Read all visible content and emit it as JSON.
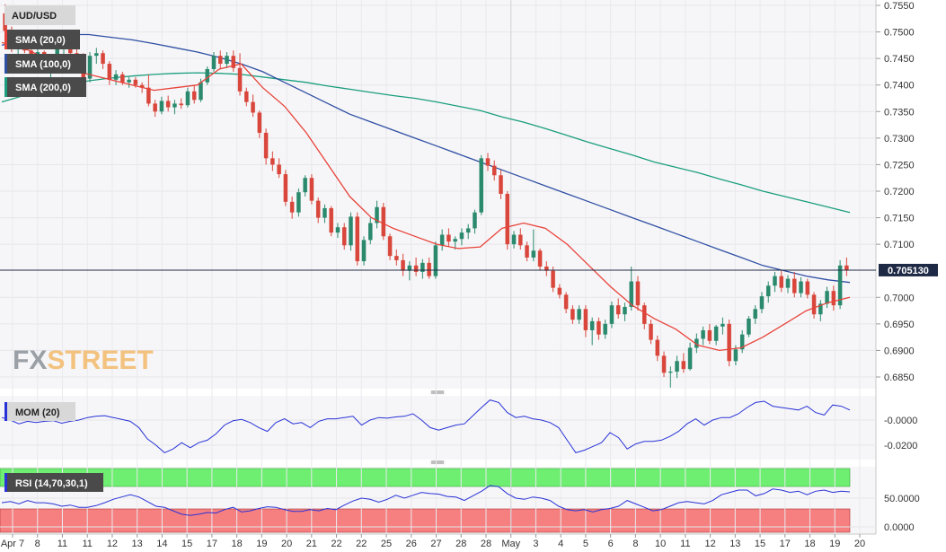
{
  "chart_data": [
    {
      "type": "candlestick",
      "title": "AUD/USD",
      "x_ticks": [
        "Apr 7",
        "8",
        "11",
        "11",
        "12",
        "13",
        "14",
        "15",
        "17",
        "18",
        "19",
        "20",
        "21",
        "22",
        "22",
        "25",
        "26",
        "27",
        "28",
        "28",
        "May",
        "3",
        "4",
        "5",
        "6",
        "8",
        "10",
        "11",
        "12",
        "13",
        "15",
        "17",
        "18",
        "19",
        "20"
      ],
      "y_ticks": [
        "0.7550",
        "0.7500",
        "0.7450",
        "0.7400",
        "0.7350",
        "0.7300",
        "0.7250",
        "0.7200",
        "0.7150",
        "0.7100",
        "0.7000",
        "0.6950",
        "0.6900",
        "0.6850"
      ],
      "ylim": [
        0.683,
        0.756
      ],
      "last_price": 0.70513,
      "last_price_label": "0.705130",
      "indicators": [
        {
          "name": "SMA (20,0)",
          "color": "#e8433a"
        },
        {
          "name": "SMA (100,0)",
          "color": "#2f4fa3"
        },
        {
          "name": "SMA (200,0)",
          "color": "#1b9e7e"
        }
      ],
      "up_color": "#2b8a6e",
      "down_color": "#d9463b",
      "ohlc": [
        [
          0.7535,
          0.7552,
          0.749,
          0.7502
        ],
        [
          0.7502,
          0.751,
          0.7462,
          0.747
        ],
        [
          0.747,
          0.749,
          0.7455,
          0.7485
        ],
        [
          0.7485,
          0.7492,
          0.746,
          0.7465
        ],
        [
          0.7465,
          0.7478,
          0.744,
          0.745
        ],
        [
          0.745,
          0.747,
          0.744,
          0.7462
        ],
        [
          0.7462,
          0.7465,
          0.7425,
          0.743
        ],
        [
          0.743,
          0.7448,
          0.7412,
          0.744
        ],
        [
          0.744,
          0.7475,
          0.7432,
          0.747
        ],
        [
          0.747,
          0.7498,
          0.7455,
          0.749
        ],
        [
          0.749,
          0.7495,
          0.7455,
          0.746
        ],
        [
          0.746,
          0.747,
          0.7435,
          0.7445
        ],
        [
          0.7445,
          0.746,
          0.7395,
          0.7412
        ],
        [
          0.7412,
          0.7462,
          0.7405,
          0.7455
        ],
        [
          0.7455,
          0.747,
          0.744,
          0.746
        ],
        [
          0.746,
          0.7465,
          0.743,
          0.744
        ],
        [
          0.744,
          0.7445,
          0.74,
          0.741
        ],
        [
          0.741,
          0.7428,
          0.74,
          0.742
        ],
        [
          0.742,
          0.7425,
          0.74,
          0.7405
        ],
        [
          0.7405,
          0.7415,
          0.7395,
          0.741
        ],
        [
          0.741,
          0.7415,
          0.7395,
          0.74
        ],
        [
          0.74,
          0.7405,
          0.7385,
          0.7395
        ],
        [
          0.7395,
          0.742,
          0.736,
          0.7365
        ],
        [
          0.7365,
          0.7372,
          0.734,
          0.735
        ],
        [
          0.735,
          0.7378,
          0.7345,
          0.737
        ],
        [
          0.737,
          0.738,
          0.735,
          0.7358
        ],
        [
          0.7358,
          0.7372,
          0.7345,
          0.7365
        ],
        [
          0.7365,
          0.7375,
          0.7355,
          0.7362
        ],
        [
          0.7362,
          0.7395,
          0.7358,
          0.7388
        ],
        [
          0.7388,
          0.74,
          0.7365,
          0.7372
        ],
        [
          0.7372,
          0.7412,
          0.7368,
          0.7405
        ],
        [
          0.7405,
          0.7435,
          0.74,
          0.743
        ],
        [
          0.743,
          0.7462,
          0.7425,
          0.7455
        ],
        [
          0.7455,
          0.7465,
          0.743,
          0.744
        ],
        [
          0.744,
          0.7462,
          0.7432,
          0.7455
        ],
        [
          0.7455,
          0.7465,
          0.7425,
          0.7432
        ],
        [
          0.7432,
          0.746,
          0.738,
          0.7388
        ],
        [
          0.7388,
          0.7395,
          0.736,
          0.7368
        ],
        [
          0.7368,
          0.7382,
          0.734,
          0.7348
        ],
        [
          0.7348,
          0.7352,
          0.73,
          0.731
        ],
        [
          0.731,
          0.7318,
          0.725,
          0.7262
        ],
        [
          0.7262,
          0.7275,
          0.7238,
          0.725
        ],
        [
          0.725,
          0.7262,
          0.7225,
          0.7232
        ],
        [
          0.7232,
          0.724,
          0.7172,
          0.718
        ],
        [
          0.718,
          0.719,
          0.7148,
          0.716
        ],
        [
          0.716,
          0.7205,
          0.7152,
          0.7198
        ],
        [
          0.7198,
          0.723,
          0.719,
          0.7225
        ],
        [
          0.7225,
          0.7232,
          0.7175,
          0.7182
        ],
        [
          0.7182,
          0.7188,
          0.714,
          0.715
        ],
        [
          0.715,
          0.7175,
          0.714,
          0.7168
        ],
        [
          0.7168,
          0.7172,
          0.7115,
          0.7122
        ],
        [
          0.7122,
          0.714,
          0.7112,
          0.7132
        ],
        [
          0.7132,
          0.714,
          0.709,
          0.7098
        ],
        [
          0.7098,
          0.716,
          0.7088,
          0.7152
        ],
        [
          0.7152,
          0.716,
          0.706,
          0.7068
        ],
        [
          0.7068,
          0.7115,
          0.706,
          0.7108
        ],
        [
          0.7108,
          0.715,
          0.71,
          0.714
        ],
        [
          0.714,
          0.7182,
          0.713,
          0.717
        ],
        [
          0.717,
          0.7178,
          0.7108,
          0.7115
        ],
        [
          0.7115,
          0.712,
          0.707,
          0.7078
        ],
        [
          0.7078,
          0.709,
          0.706,
          0.707
        ],
        [
          0.707,
          0.7082,
          0.704,
          0.705
        ],
        [
          0.705,
          0.7068,
          0.7032,
          0.706
        ],
        [
          0.706,
          0.7075,
          0.704,
          0.7048
        ],
        [
          0.7048,
          0.7072,
          0.7035,
          0.7065
        ],
        [
          0.7065,
          0.7075,
          0.7035,
          0.704
        ],
        [
          0.704,
          0.7105,
          0.7035,
          0.7098
        ],
        [
          0.7098,
          0.7128,
          0.7088,
          0.7118
        ],
        [
          0.7118,
          0.713,
          0.7095,
          0.7105
        ],
        [
          0.7105,
          0.7115,
          0.709,
          0.711
        ],
        [
          0.711,
          0.713,
          0.7098,
          0.7122
        ],
        [
          0.7122,
          0.7138,
          0.711,
          0.713
        ],
        [
          0.713,
          0.7165,
          0.712,
          0.716
        ],
        [
          0.716,
          0.7268,
          0.7155,
          0.7262
        ],
        [
          0.7262,
          0.7272,
          0.7238,
          0.7248
        ],
        [
          0.7248,
          0.7258,
          0.722,
          0.723
        ],
        [
          0.723,
          0.724,
          0.7185,
          0.7195
        ],
        [
          0.7195,
          0.72,
          0.709,
          0.71
        ],
        [
          0.71,
          0.7125,
          0.7092,
          0.7118
        ],
        [
          0.7118,
          0.713,
          0.709,
          0.7098
        ],
        [
          0.7098,
          0.7105,
          0.7068,
          0.7075
        ],
        [
          0.7075,
          0.7128,
          0.7068,
          0.7088
        ],
        [
          0.7088,
          0.7092,
          0.705,
          0.7058
        ],
        [
          0.7058,
          0.7068,
          0.704,
          0.705
        ],
        [
          0.705,
          0.7058,
          0.701,
          0.7018
        ],
        [
          0.7018,
          0.7025,
          0.6998,
          0.7005
        ],
        [
          0.7005,
          0.701,
          0.697,
          0.6978
        ],
        [
          0.6978,
          0.6985,
          0.695,
          0.6958
        ],
        [
          0.6958,
          0.6985,
          0.695,
          0.6978
        ],
        [
          0.6978,
          0.6985,
          0.6925,
          0.6938
        ],
        [
          0.6938,
          0.6962,
          0.691,
          0.6955
        ],
        [
          0.6955,
          0.6962,
          0.692,
          0.693
        ],
        [
          0.693,
          0.6958,
          0.6922,
          0.695
        ],
        [
          0.695,
          0.6992,
          0.6942,
          0.6985
        ],
        [
          0.6985,
          0.6998,
          0.696,
          0.6968
        ],
        [
          0.6968,
          0.699,
          0.6955,
          0.6982
        ],
        [
          0.6982,
          0.7058,
          0.6975,
          0.703
        ],
        [
          0.703,
          0.704,
          0.6975,
          0.6985
        ],
        [
          0.6985,
          0.699,
          0.694,
          0.695
        ],
        [
          0.695,
          0.6958,
          0.6912,
          0.692
        ],
        [
          0.692,
          0.6928,
          0.688,
          0.689
        ],
        [
          0.689,
          0.6898,
          0.685,
          0.6858
        ],
        [
          0.6858,
          0.687,
          0.683,
          0.686
        ],
        [
          0.686,
          0.689,
          0.6848,
          0.688
        ],
        [
          0.688,
          0.6895,
          0.6858,
          0.6865
        ],
        [
          0.6865,
          0.6915,
          0.6862,
          0.6905
        ],
        [
          0.6905,
          0.6932,
          0.6895,
          0.6922
        ],
        [
          0.6922,
          0.6945,
          0.691,
          0.6938
        ],
        [
          0.6938,
          0.695,
          0.6912,
          0.6918
        ],
        [
          0.6918,
          0.6948,
          0.691,
          0.6945
        ],
        [
          0.6945,
          0.6962,
          0.693,
          0.695
        ],
        [
          0.695,
          0.6958,
          0.687,
          0.688
        ],
        [
          0.688,
          0.691,
          0.6872,
          0.6902
        ],
        [
          0.6902,
          0.6938,
          0.6895,
          0.693
        ],
        [
          0.693,
          0.6965,
          0.6925,
          0.696
        ],
        [
          0.696,
          0.6985,
          0.695,
          0.6978
        ],
        [
          0.6978,
          0.701,
          0.697,
          0.7002
        ],
        [
          0.7002,
          0.703,
          0.699,
          0.7022
        ],
        [
          0.7022,
          0.7048,
          0.701,
          0.704
        ],
        [
          0.704,
          0.705,
          0.701,
          0.7018
        ],
        [
          0.7018,
          0.7042,
          0.7008,
          0.7035
        ],
        [
          0.7035,
          0.7048,
          0.7,
          0.7008
        ],
        [
          0.7008,
          0.7038,
          0.7,
          0.703
        ],
        [
          0.703,
          0.7035,
          0.6998,
          0.7005
        ],
        [
          0.7005,
          0.701,
          0.696,
          0.6968
        ],
        [
          0.6968,
          0.6995,
          0.6955,
          0.6988
        ],
        [
          0.6988,
          0.702,
          0.698,
          0.7012
        ],
        [
          0.7012,
          0.7022,
          0.6975,
          0.6985
        ],
        [
          0.6985,
          0.707,
          0.6978,
          0.706
        ],
        [
          0.706,
          0.7075,
          0.704,
          0.7051
        ]
      ],
      "sma20": [
        0.748,
        0.747,
        0.745,
        0.743,
        0.742,
        0.741,
        0.74,
        0.739,
        0.7395,
        0.74,
        0.743,
        0.744,
        0.7395,
        0.736,
        0.731,
        0.725,
        0.719,
        0.715,
        0.713,
        0.7115,
        0.71,
        0.7092,
        0.7095,
        0.713,
        0.714,
        0.713,
        0.71,
        0.706,
        0.702,
        0.6985,
        0.696,
        0.694,
        0.691,
        0.69,
        0.6905,
        0.6925,
        0.695,
        0.6975,
        0.699,
        0.7
      ],
      "sma100": [
        0.7475,
        0.7485,
        0.749,
        0.7495,
        0.7495,
        0.749,
        0.7485,
        0.7478,
        0.747,
        0.7462,
        0.7452,
        0.744,
        0.7425,
        0.7405,
        0.7385,
        0.7365,
        0.7345,
        0.733,
        0.7315,
        0.73,
        0.7285,
        0.727,
        0.7255,
        0.724,
        0.7225,
        0.721,
        0.7195,
        0.718,
        0.7165,
        0.715,
        0.7135,
        0.712,
        0.7105,
        0.709,
        0.7075,
        0.706,
        0.705,
        0.704,
        0.7033,
        0.7028
      ],
      "sma200": [
        0.7368,
        0.738,
        0.739,
        0.74,
        0.7408,
        0.7413,
        0.7417,
        0.742,
        0.7422,
        0.7423,
        0.7422,
        0.742,
        0.7415,
        0.741,
        0.7405,
        0.7398,
        0.7392,
        0.7386,
        0.738,
        0.7375,
        0.7368,
        0.736,
        0.7352,
        0.734,
        0.733,
        0.7318,
        0.7305,
        0.7292,
        0.728,
        0.7268,
        0.7255,
        0.7245,
        0.7235,
        0.7223,
        0.7212,
        0.72,
        0.719,
        0.718,
        0.717,
        0.716
      ]
    },
    {
      "type": "line",
      "title": "MOM (20)",
      "y_ticks": [
        "-0.0000",
        "-0.0200"
      ],
      "ylim": [
        -0.029,
        0.019
      ],
      "color": "#2832d6",
      "values": [
        0.002,
        0.0,
        -0.003,
        -0.001,
        -0.002,
        -0.001,
        -0.0005,
        -0.0025,
        -0.001,
        0.0,
        0.002,
        0.003,
        0.0035,
        0.002,
        0.0005,
        -0.001,
        -0.006,
        -0.015,
        -0.02,
        -0.026,
        -0.023,
        -0.018,
        -0.022,
        -0.018,
        -0.016,
        -0.011,
        -0.004,
        -0.0005,
        0.0005,
        -0.002,
        -0.006,
        -0.009,
        -0.002,
        0.001,
        -0.003,
        -0.002,
        -0.006,
        -0.001,
        0.001,
        0.001,
        0.002,
        0.003,
        -0.004,
        0.0,
        0.002,
        0.0015,
        0.0025,
        0.003,
        0.005,
        0.0,
        -0.006,
        -0.008,
        -0.006,
        -0.004,
        -0.003,
        0.0035,
        0.01,
        0.016,
        0.014,
        0.006,
        0.002,
        0.003,
        0.001,
        0.0,
        -0.002,
        -0.006,
        -0.016,
        -0.026,
        -0.024,
        -0.021,
        -0.018,
        -0.01,
        -0.014,
        -0.023,
        -0.019,
        -0.017,
        -0.017,
        -0.016,
        -0.013,
        -0.009,
        -0.003,
        0.001,
        -0.004,
        0.0,
        0.002,
        0.002,
        0.005,
        0.01,
        0.014,
        0.015,
        0.011,
        0.01,
        0.009,
        0.008,
        0.011,
        0.006,
        0.004,
        0.012,
        0.011,
        0.008
      ]
    },
    {
      "type": "line",
      "title": "RSI (14,70,30,1)",
      "y_ticks": [
        "50.0000",
        "0.0000"
      ],
      "ylim": [
        0,
        100
      ],
      "overbought": 70,
      "oversold": 30,
      "color": "#2832d6",
      "overbought_color": "#6fef72",
      "oversold_color": "#f68080",
      "values": [
        42,
        44,
        40,
        46,
        42,
        42,
        40,
        36,
        38,
        34,
        34,
        37,
        42,
        48,
        52,
        56,
        52,
        44,
        36,
        34,
        28,
        22,
        20,
        22,
        25,
        24,
        30,
        34,
        26,
        28,
        32,
        35,
        34,
        30,
        27,
        27,
        30,
        28,
        32,
        30,
        38,
        45,
        50,
        48,
        43,
        48,
        55,
        50,
        55,
        60,
        58,
        57,
        53,
        52,
        46,
        54,
        62,
        72,
        70,
        58,
        50,
        48,
        52,
        50,
        46,
        36,
        30,
        28,
        30,
        26,
        30,
        32,
        36,
        46,
        40,
        34,
        28,
        30,
        36,
        42,
        44,
        42,
        40,
        46,
        56,
        60,
        64,
        64,
        54,
        58,
        66,
        64,
        60,
        62,
        56,
        62,
        64,
        60,
        62,
        61
      ]
    }
  ],
  "watermark": {
    "fx": "FX",
    "street": "STREET"
  }
}
